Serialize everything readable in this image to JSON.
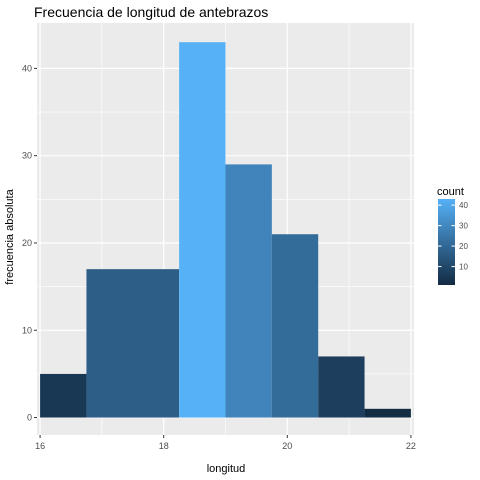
{
  "chart_data": {
    "type": "bar",
    "subtype": "histogram",
    "title": "Frecuencia de longitud de antebrazos",
    "xlabel": "longitud",
    "ylabel": "frecuencia absoluta",
    "x_ticks": [
      16,
      18,
      20,
      22
    ],
    "y_ticks": [
      0,
      10,
      20,
      30,
      40
    ],
    "xlim": [
      15.95,
      22.05
    ],
    "ylim": [
      -2,
      45.2
    ],
    "grid": true,
    "bins": [
      {
        "start": 16.0,
        "end": 16.75,
        "count": 5
      },
      {
        "start": 16.75,
        "end": 18.25,
        "count": 17
      },
      {
        "start": 18.25,
        "end": 19.0,
        "count": 43
      },
      {
        "start": 19.0,
        "end": 19.75,
        "count": 29
      },
      {
        "start": 19.75,
        "end": 20.5,
        "count": 21
      },
      {
        "start": 20.5,
        "end": 21.25,
        "count": 7
      },
      {
        "start": 21.25,
        "end": 22.0,
        "count": 1
      }
    ],
    "legend": {
      "title": "count",
      "placement": "right",
      "ticks": [
        10,
        20,
        30,
        40
      ],
      "range": [
        1,
        43
      ]
    },
    "colors": {
      "panel": "#ebebeb",
      "grid_major": "#ffffff",
      "low": "#132b43",
      "high": "#56b1f7"
    }
  }
}
